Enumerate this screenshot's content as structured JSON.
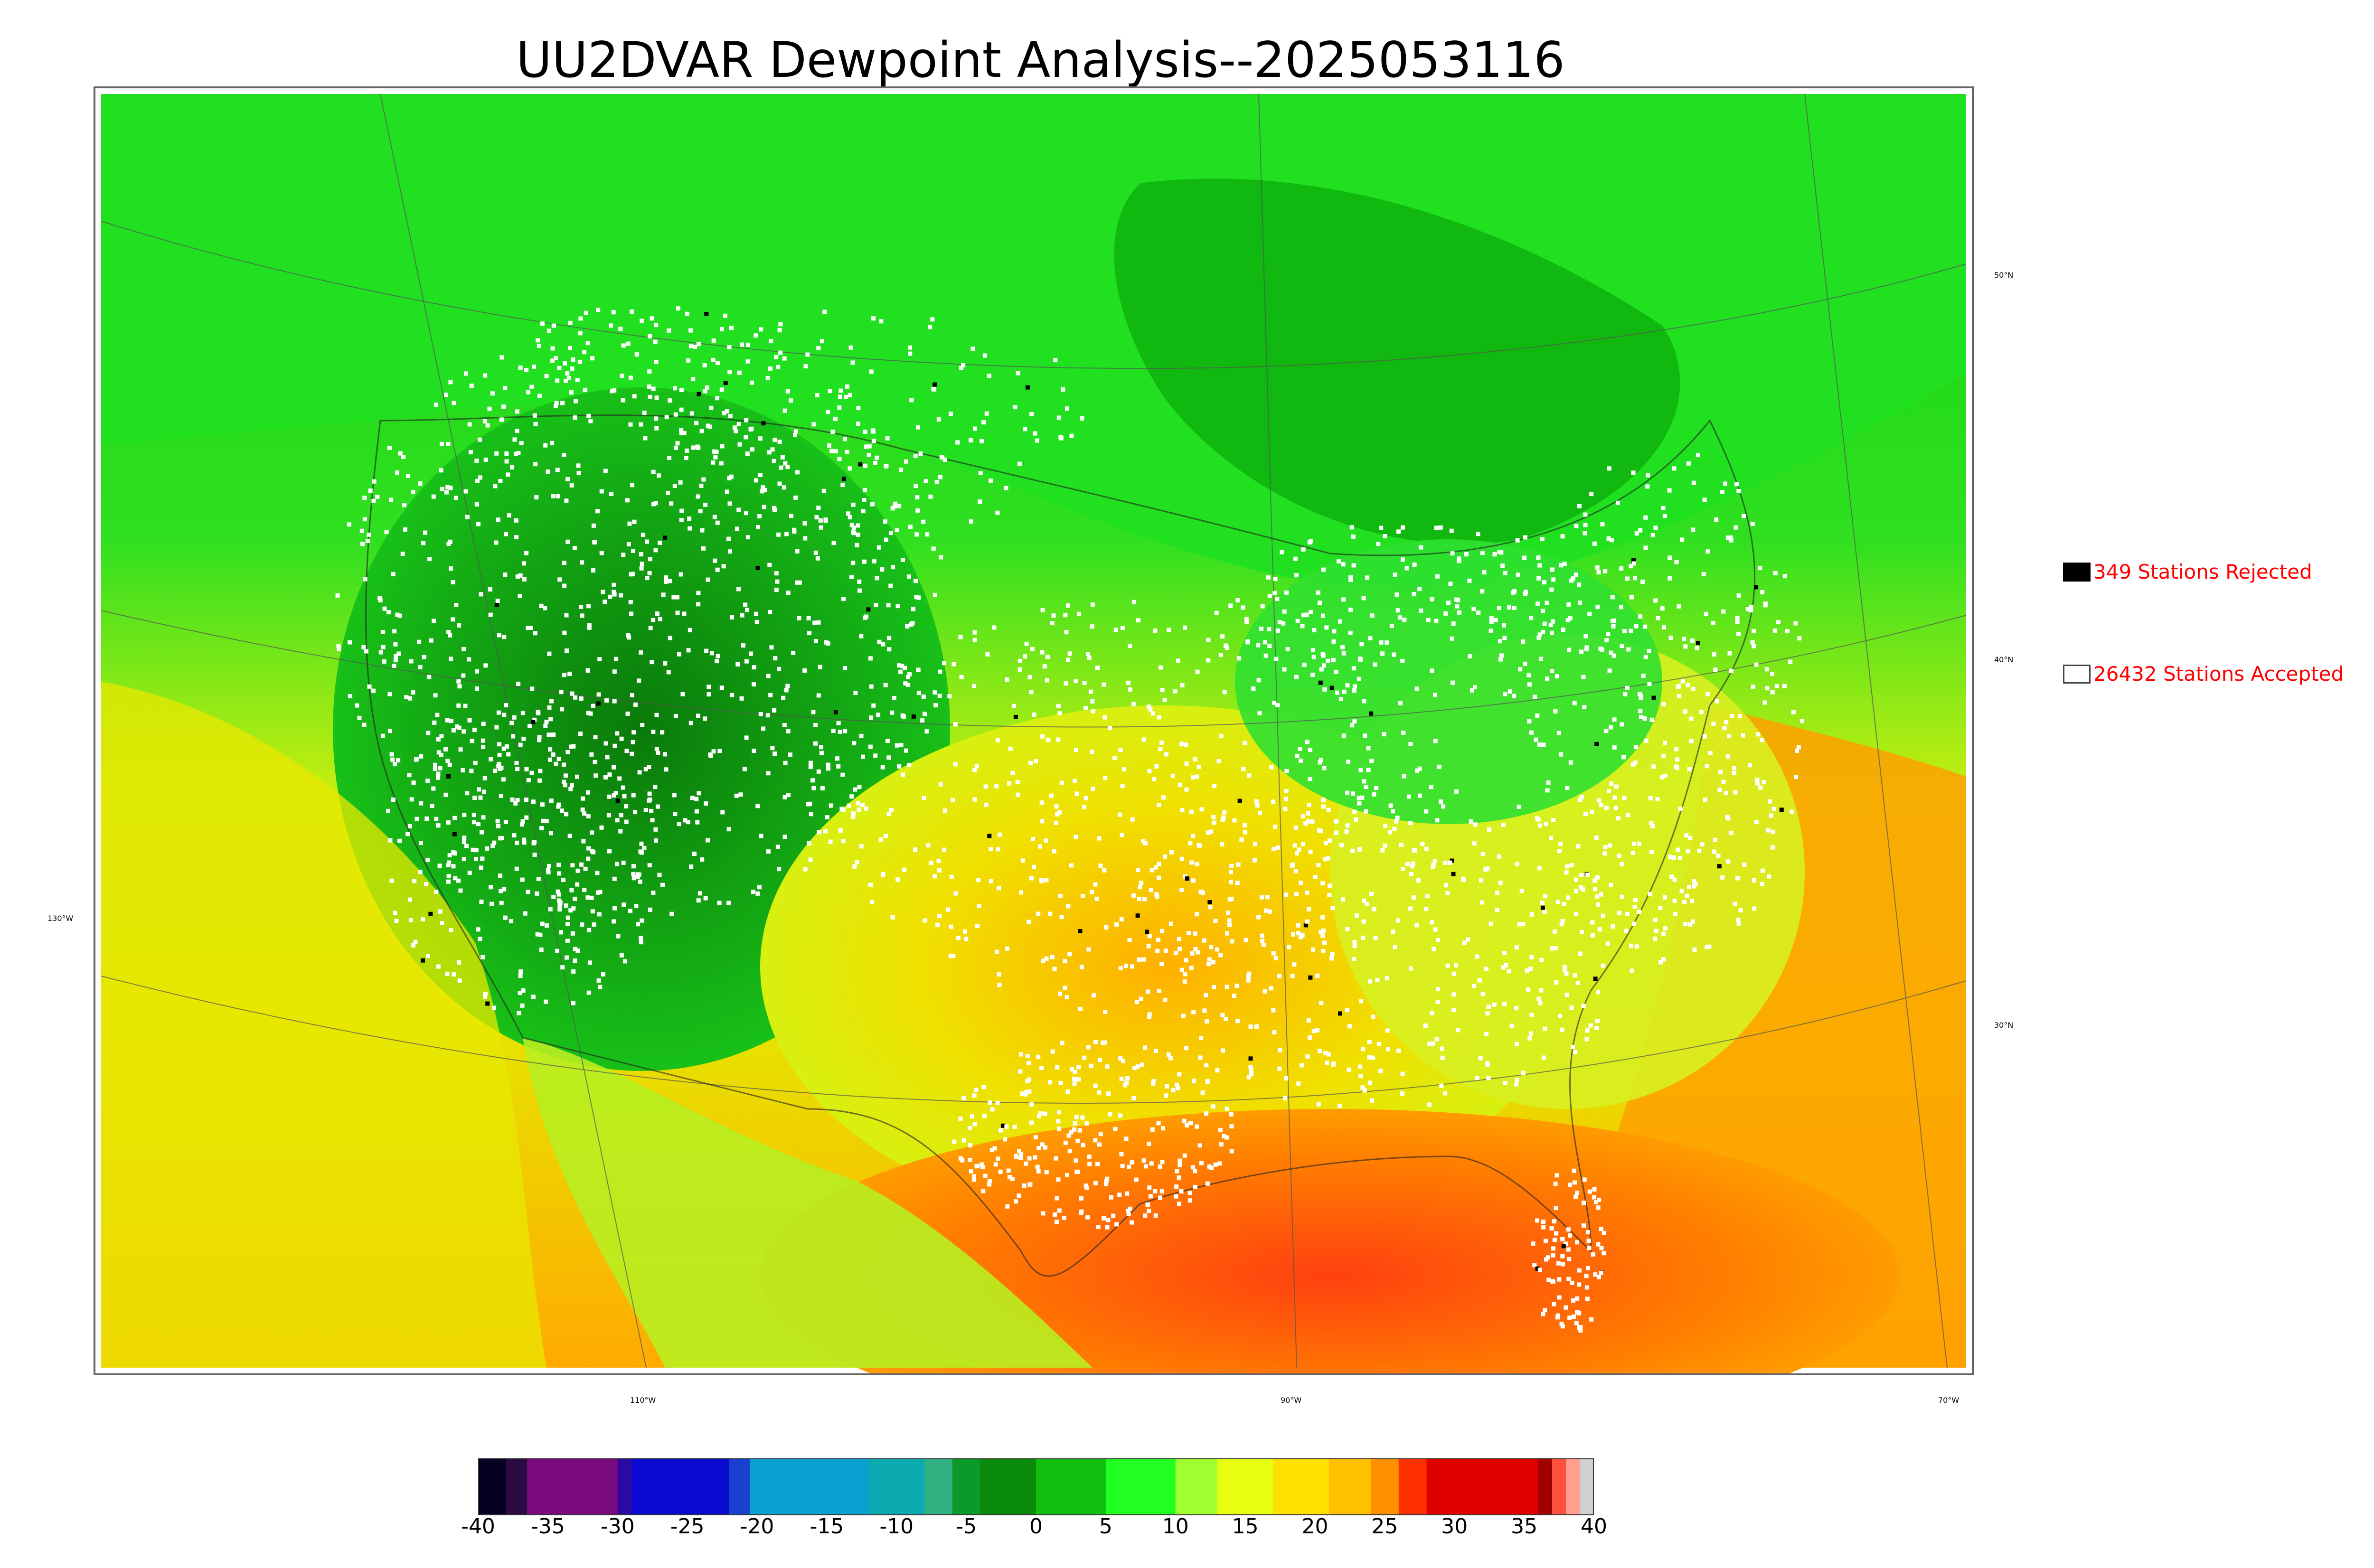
{
  "title": "UU2DVAR Dewpoint Analysis--2025053116",
  "map": {
    "lat_labels": [
      "50°N",
      "40°N",
      "30°N"
    ],
    "lon_labels": [
      "130°W",
      "110°W",
      "90°W",
      "70°W"
    ],
    "colors": {
      "dry": "#0a8a0a",
      "mid": "#22ee22",
      "moist": "#dddd00",
      "humid": "#ff9a00",
      "very_humid": "#ff3300",
      "station": "#ffffff",
      "rejected": "#000000"
    }
  },
  "legend": {
    "rejected": {
      "count": "349",
      "label": "349 Stations Rejected",
      "color": "#000000"
    },
    "accepted": {
      "count": "26432",
      "label": "26432 Stations Accepted",
      "color": "#ffffff"
    }
  },
  "colorbar": {
    "ticks": [
      "-40",
      "-35",
      "-30",
      "-25",
      "-20",
      "-15",
      "-10",
      "-5",
      "0",
      "5",
      "10",
      "15",
      "20",
      "25",
      "30",
      "35",
      "40"
    ],
    "range": [
      -40,
      40
    ],
    "bands": [
      {
        "from": -40,
        "to": -38,
        "color": "#050020"
      },
      {
        "from": -38,
        "to": -36.5,
        "color": "#2a0a40"
      },
      {
        "from": -36.5,
        "to": -30,
        "color": "#7a0a80"
      },
      {
        "from": -30,
        "to": -29,
        "color": "#2a0aa0"
      },
      {
        "from": -29,
        "to": -22,
        "color": "#0a0ad0"
      },
      {
        "from": -22,
        "to": -20.5,
        "color": "#1a40d0"
      },
      {
        "from": -20.5,
        "to": -12,
        "color": "#0aa0d0"
      },
      {
        "from": -12,
        "to": -8,
        "color": "#0aaab0"
      },
      {
        "from": -8,
        "to": -6,
        "color": "#30b080"
      },
      {
        "from": -6,
        "to": -4,
        "color": "#0a9a2a"
      },
      {
        "from": -4,
        "to": 0,
        "color": "#0a8a0a"
      },
      {
        "from": 0,
        "to": 5,
        "color": "#10c010"
      },
      {
        "from": 5,
        "to": 10,
        "color": "#20ff20"
      },
      {
        "from": 10,
        "to": 13,
        "color": "#a0ff30"
      },
      {
        "from": 13,
        "to": 17,
        "color": "#e8ff10"
      },
      {
        "from": 17,
        "to": 21,
        "color": "#ffe000"
      },
      {
        "from": 21,
        "to": 24,
        "color": "#ffc000"
      },
      {
        "from": 24,
        "to": 26,
        "color": "#ff9000"
      },
      {
        "from": 26,
        "to": 28,
        "color": "#ff3000"
      },
      {
        "from": 28,
        "to": 36,
        "color": "#e00000"
      },
      {
        "from": 36,
        "to": 37,
        "color": "#a00000"
      },
      {
        "from": 37,
        "to": 38,
        "color": "#ff5040"
      },
      {
        "from": 38,
        "to": 39,
        "color": "#ffa090"
      },
      {
        "from": 39,
        "to": 40,
        "color": "#d0d0d0"
      }
    ]
  }
}
